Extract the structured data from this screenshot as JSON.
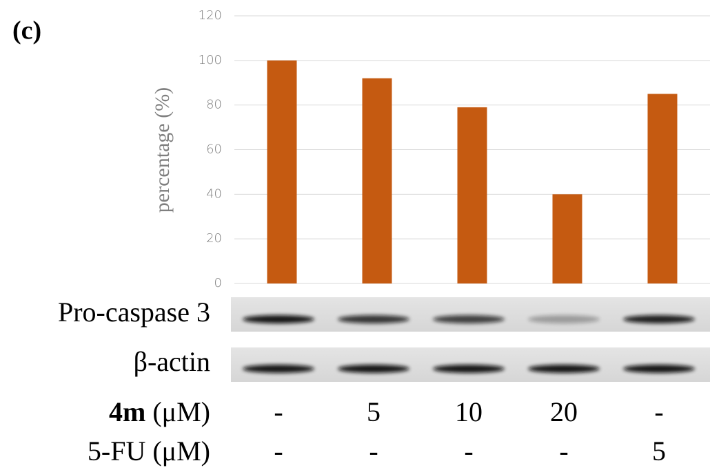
{
  "chart_data": {
    "type": "bar",
    "title": "(c)",
    "y_label": "percentage (%)",
    "categories": [
      null,
      null,
      null,
      null,
      null
    ],
    "values": [
      100,
      92,
      79,
      40,
      85
    ],
    "color": "#c55a11",
    "ylim": [
      0,
      120
    ],
    "yticks": [
      0,
      20,
      40,
      60,
      80,
      100,
      120
    ],
    "grid": true,
    "blots": [
      "Pro-caspase 3",
      "β-actin"
    ],
    "treatments": [
      {
        "label_bold": "4m",
        "label": "(μM)",
        "values": [
          "-",
          "5",
          "10",
          "20",
          "-"
        ]
      },
      {
        "label": "5-FU (μM)",
        "values": [
          "-",
          "-",
          "-",
          "-",
          "5"
        ]
      }
    ]
  }
}
